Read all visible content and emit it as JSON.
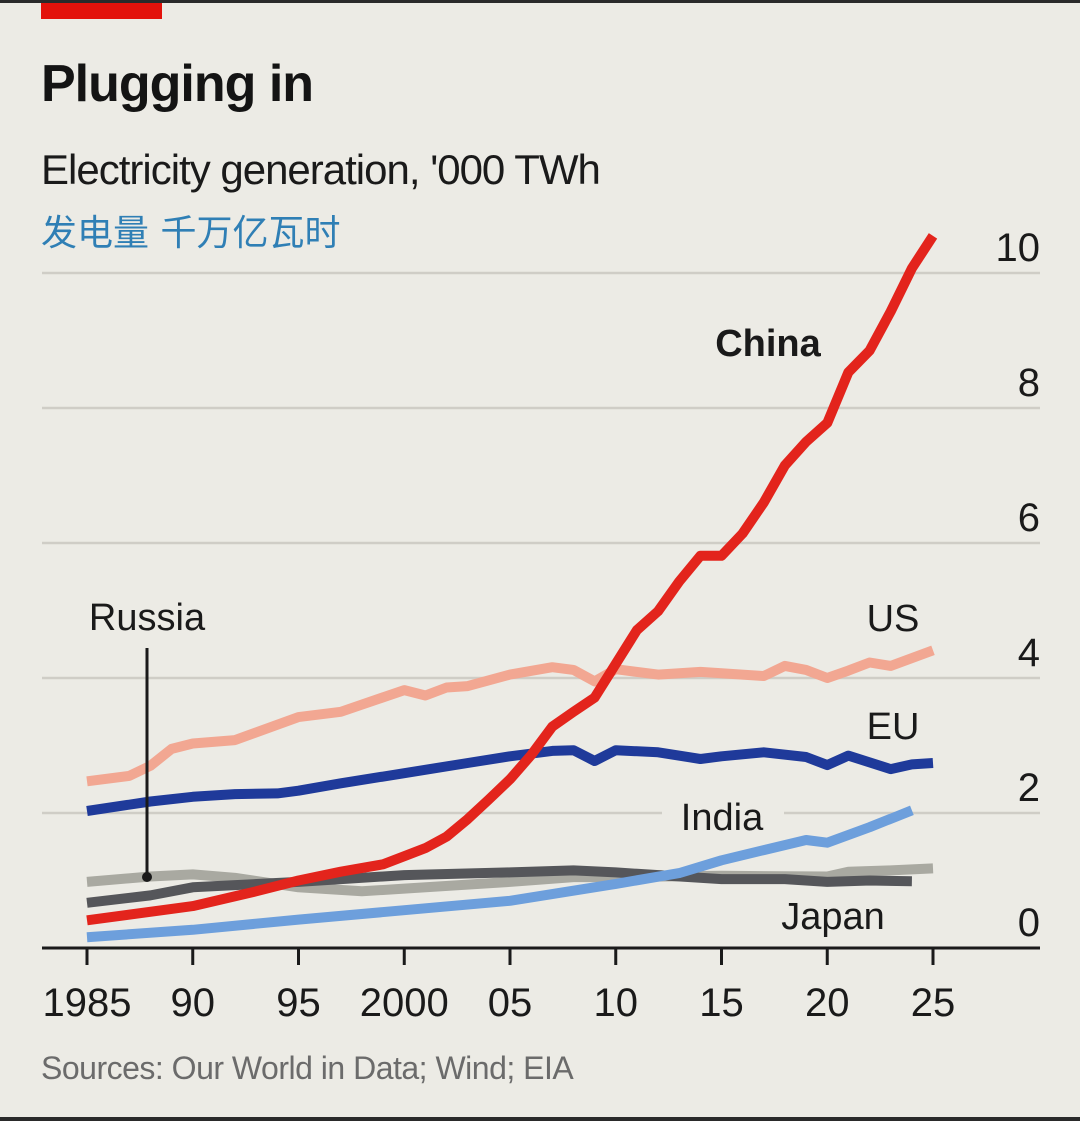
{
  "chart_data": {
    "type": "line",
    "title": "Plugging in",
    "subtitle": "Electricity generation, '000 TWh",
    "subtitle_cn": "发电量  千万亿瓦时",
    "source": "Sources: Our World in Data; Wind; EIA",
    "xlim": [
      1985,
      2025
    ],
    "ylim": [
      0,
      10
    ],
    "x_ticks": [
      1985,
      1990,
      1995,
      2000,
      2005,
      2010,
      2015,
      2020,
      2025
    ],
    "x_tick_labels": [
      "1985",
      "90",
      "95",
      "2000",
      "05",
      "10",
      "15",
      "20",
      "25"
    ],
    "y_ticks": [
      0,
      2,
      4,
      6,
      8,
      10
    ],
    "y_tick_labels": [
      "0",
      "2",
      "4",
      "6",
      "8",
      "10"
    ],
    "y_axis_side": "right",
    "grid": true,
    "series": [
      {
        "name": "Russia",
        "color": "#a9a9a1",
        "points": [
          [
            1985,
            0.98
          ],
          [
            1988,
            1.06
          ],
          [
            1990,
            1.09
          ],
          [
            1992,
            1.04
          ],
          [
            1995,
            0.9
          ],
          [
            1998,
            0.84
          ],
          [
            2000,
            0.88
          ],
          [
            2005,
            0.98
          ],
          [
            2008,
            1.05
          ],
          [
            2010,
            1.05
          ],
          [
            2015,
            1.07
          ],
          [
            2020,
            1.06
          ],
          [
            2021,
            1.13
          ],
          [
            2023,
            1.15
          ],
          [
            2025,
            1.18
          ]
        ]
      },
      {
        "name": "Japan",
        "color": "#55565a",
        "points": [
          [
            1985,
            0.67
          ],
          [
            1988,
            0.78
          ],
          [
            1990,
            0.9
          ],
          [
            1995,
            0.98
          ],
          [
            2000,
            1.08
          ],
          [
            2005,
            1.12
          ],
          [
            2008,
            1.15
          ],
          [
            2010,
            1.12
          ],
          [
            2011,
            1.1
          ],
          [
            2015,
            1.02
          ],
          [
            2018,
            1.02
          ],
          [
            2020,
            0.98
          ],
          [
            2022,
            1.0
          ],
          [
            2024,
            0.99
          ]
        ]
      },
      {
        "name": "India",
        "color": "#6d9fdc",
        "points": [
          [
            1985,
            0.16
          ],
          [
            1990,
            0.27
          ],
          [
            1995,
            0.42
          ],
          [
            2000,
            0.56
          ],
          [
            2005,
            0.7
          ],
          [
            2010,
            0.95
          ],
          [
            2013,
            1.11
          ],
          [
            2015,
            1.3
          ],
          [
            2017,
            1.45
          ],
          [
            2019,
            1.6
          ],
          [
            2020,
            1.56
          ],
          [
            2022,
            1.79
          ],
          [
            2024,
            2.04
          ]
        ]
      },
      {
        "name": "EU",
        "color": "#1f3a9a",
        "points": [
          [
            1985,
            2.03
          ],
          [
            1988,
            2.17
          ],
          [
            1990,
            2.24
          ],
          [
            1992,
            2.28
          ],
          [
            1994,
            2.29
          ],
          [
            1995,
            2.33
          ],
          [
            1997,
            2.44
          ],
          [
            2000,
            2.59
          ],
          [
            2003,
            2.74
          ],
          [
            2005,
            2.84
          ],
          [
            2007,
            2.92
          ],
          [
            2008,
            2.93
          ],
          [
            2009,
            2.77
          ],
          [
            2010,
            2.93
          ],
          [
            2012,
            2.9
          ],
          [
            2014,
            2.8
          ],
          [
            2015,
            2.84
          ],
          [
            2017,
            2.9
          ],
          [
            2019,
            2.83
          ],
          [
            2020,
            2.71
          ],
          [
            2021,
            2.85
          ],
          [
            2022,
            2.75
          ],
          [
            2023,
            2.65
          ],
          [
            2024,
            2.72
          ],
          [
            2025,
            2.74
          ]
        ]
      },
      {
        "name": "US",
        "color": "#f2a792",
        "points": [
          [
            1985,
            2.47
          ],
          [
            1987,
            2.55
          ],
          [
            1988,
            2.7
          ],
          [
            1989,
            2.95
          ],
          [
            1990,
            3.03
          ],
          [
            1992,
            3.08
          ],
          [
            1995,
            3.42
          ],
          [
            1997,
            3.5
          ],
          [
            2000,
            3.82
          ],
          [
            2001,
            3.74
          ],
          [
            2002,
            3.86
          ],
          [
            2003,
            3.88
          ],
          [
            2005,
            4.05
          ],
          [
            2007,
            4.16
          ],
          [
            2008,
            4.12
          ],
          [
            2009,
            3.95
          ],
          [
            2010,
            4.13
          ],
          [
            2012,
            4.05
          ],
          [
            2014,
            4.09
          ],
          [
            2015,
            4.07
          ],
          [
            2017,
            4.03
          ],
          [
            2018,
            4.18
          ],
          [
            2019,
            4.12
          ],
          [
            2020,
            4.0
          ],
          [
            2021,
            4.11
          ],
          [
            2022,
            4.23
          ],
          [
            2023,
            4.18
          ],
          [
            2025,
            4.41
          ]
        ]
      },
      {
        "name": "China",
        "color": "#e3241c",
        "points": [
          [
            1985,
            0.41
          ],
          [
            1990,
            0.62
          ],
          [
            1993,
            0.84
          ],
          [
            1995,
            1.0
          ],
          [
            1997,
            1.13
          ],
          [
            1999,
            1.24
          ],
          [
            2000,
            1.36
          ],
          [
            2001,
            1.48
          ],
          [
            2002,
            1.65
          ],
          [
            2003,
            1.91
          ],
          [
            2004,
            2.2
          ],
          [
            2005,
            2.5
          ],
          [
            2006,
            2.86
          ],
          [
            2007,
            3.28
          ],
          [
            2008,
            3.5
          ],
          [
            2009,
            3.71
          ],
          [
            2010,
            4.21
          ],
          [
            2011,
            4.71
          ],
          [
            2012,
            4.99
          ],
          [
            2013,
            5.43
          ],
          [
            2014,
            5.81
          ],
          [
            2015,
            5.81
          ],
          [
            2016,
            6.14
          ],
          [
            2017,
            6.6
          ],
          [
            2018,
            7.15
          ],
          [
            2019,
            7.5
          ],
          [
            2020,
            7.78
          ],
          [
            2021,
            8.53
          ],
          [
            2022,
            8.85
          ],
          [
            2023,
            9.43
          ],
          [
            2024,
            10.07
          ],
          [
            2025,
            10.55
          ]
        ]
      }
    ],
    "annotations": [
      {
        "text": "China",
        "series": "China"
      },
      {
        "text": "US",
        "series": "US"
      },
      {
        "text": "EU",
        "series": "EU"
      },
      {
        "text": "India",
        "series": "India"
      },
      {
        "text": "Russia",
        "series": "Russia"
      },
      {
        "text": "Japan",
        "series": "Japan"
      }
    ]
  },
  "colors": {
    "background": "#ecebe5",
    "brand_red": "#e3120b",
    "subtitle_cn": "#2f7fb5"
  }
}
